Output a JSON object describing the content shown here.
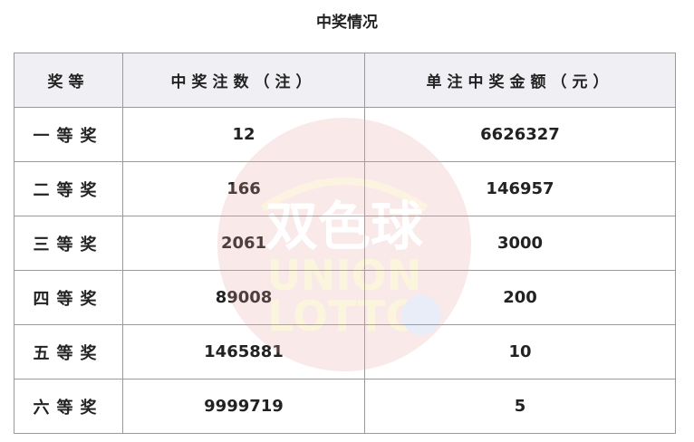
{
  "title": "中奖情况",
  "headers": [
    "奖等",
    "中奖注数（注）",
    "单注中奖金额（元）"
  ],
  "rows": [
    {
      "level": "一等奖",
      "count": "12",
      "amount": "6626327"
    },
    {
      "level": "二等奖",
      "count": "166",
      "amount": "146957"
    },
    {
      "level": "三等奖",
      "count": "2061",
      "amount": "3000"
    },
    {
      "level": "四等奖",
      "count": "89008",
      "amount": "200"
    },
    {
      "level": "五等奖",
      "count": "1465881",
      "amount": "10"
    },
    {
      "level": "六等奖",
      "count": "9999719",
      "amount": "5"
    }
  ],
  "watermark": {
    "text_cn": "双色球",
    "text_en_1": "UNION",
    "text_en_2": "LOTTO"
  }
}
